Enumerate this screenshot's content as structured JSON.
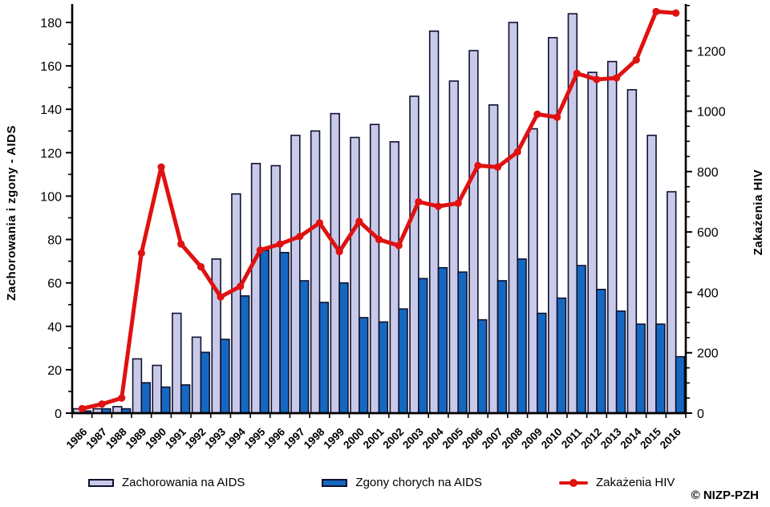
{
  "chart_data": {
    "type": "bar+line",
    "categories": [
      "1986",
      "1987",
      "1988",
      "1989",
      "1990",
      "1991",
      "1992",
      "1993",
      "1994",
      "1995",
      "1996",
      "1997",
      "1998",
      "1999",
      "2000",
      "2001",
      "2002",
      "2003",
      "2004",
      "2005",
      "2006",
      "2007",
      "2008",
      "2009",
      "2010",
      "2011",
      "2012",
      "2013",
      "2014",
      "2015",
      "2016"
    ],
    "series": [
      {
        "name": "Zachorowania na AIDS",
        "type": "bar",
        "axis": "left",
        "color": "#c9c9ea",
        "values": [
          2,
          2,
          3,
          25,
          22,
          46,
          35,
          71,
          101,
          115,
          114,
          128,
          130,
          138,
          127,
          133,
          125,
          146,
          176,
          153,
          167,
          142,
          180,
          131,
          173,
          184,
          157,
          162,
          149,
          128,
          102
        ]
      },
      {
        "name": "Zgony chorych na AIDS",
        "type": "bar",
        "axis": "left",
        "color": "#1568c0",
        "values": [
          1,
          2,
          2,
          14,
          12,
          13,
          28,
          34,
          54,
          75,
          74,
          61,
          51,
          60,
          44,
          42,
          48,
          62,
          67,
          65,
          43,
          61,
          71,
          46,
          53,
          68,
          57,
          47,
          41,
          41,
          26
        ]
      },
      {
        "name": "Zakażenia HIV",
        "type": "line",
        "axis": "right",
        "color": "#e01111",
        "values": [
          15,
          30,
          50,
          530,
          815,
          560,
          485,
          385,
          420,
          540,
          560,
          585,
          630,
          535,
          635,
          575,
          555,
          700,
          685,
          695,
          820,
          815,
          865,
          990,
          980,
          1125,
          1105,
          1110,
          1170,
          1330,
          1325
        ]
      }
    ],
    "axes": {
      "left": {
        "title": "Zachorowania i zgony - AIDS",
        "min": 0,
        "max": 180,
        "step": 20,
        "minor_step": 10
      },
      "right": {
        "title": "Zakażenia HIV",
        "min": 0,
        "max": 1200,
        "step": 200,
        "minor_step": 50
      }
    },
    "legend_position": "bottom",
    "grid": false
  },
  "footer": {
    "copyright": "© NIZP-PZH"
  },
  "colors": {
    "bar_border": "#10102f",
    "axis": "#000000",
    "background": "#ffffff"
  }
}
